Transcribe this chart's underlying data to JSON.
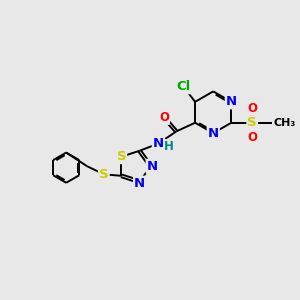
{
  "bg_color": "#e8e8e8",
  "bond_color": "#000000",
  "bond_width": 1.4,
  "atom_colors": {
    "N": "#0000ee",
    "O": "#ff0000",
    "S": "#cccc00",
    "Cl": "#00aa00",
    "H": "#008888",
    "C": "#000000"
  },
  "font_size": 8.5,
  "fig_size": [
    3.0,
    3.0
  ],
  "dpi": 100,
  "xlim": [
    0,
    10
  ],
  "ylim": [
    0,
    10
  ]
}
